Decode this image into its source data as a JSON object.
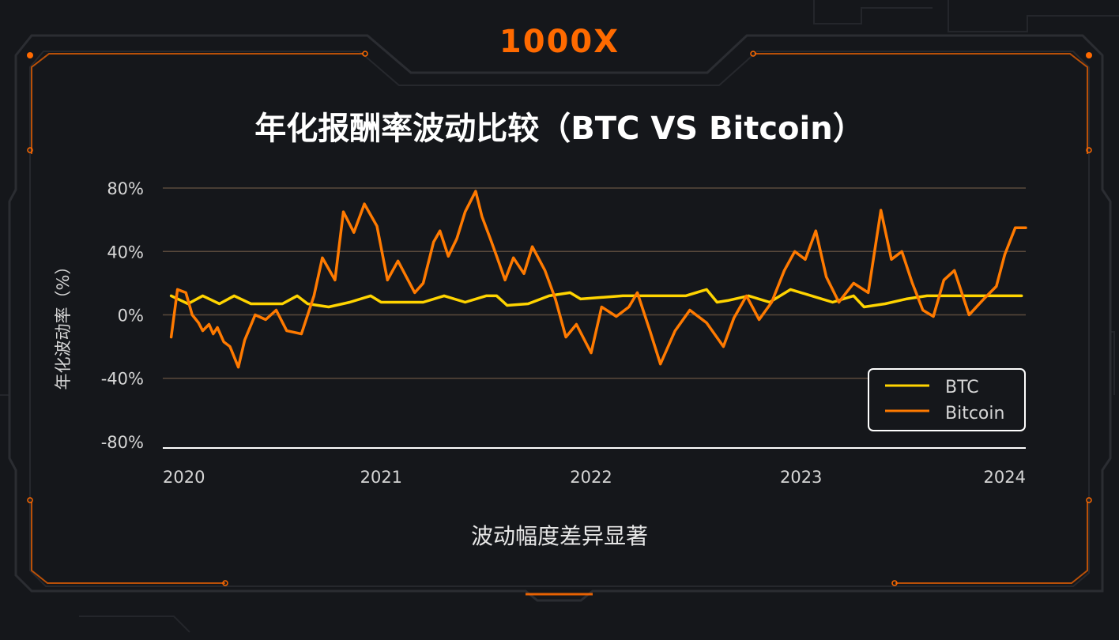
{
  "brand": "1000X",
  "caption": "波动幅度差异显著",
  "colors": {
    "background": "#15171b",
    "frame": "#2a2c31",
    "accent": "#ff6a00",
    "grid": "#5a4a3c",
    "btc": "#ffd400",
    "bitcoin": "#ff7a00"
  },
  "chart_data": {
    "type": "line",
    "title": "年化报酬率波动比较（BTC VS Bitcoin）",
    "xlabel": "",
    "ylabel": "年化波动率（%）",
    "xlim": [
      2019.96,
      2024.07
    ],
    "ylim": [
      -84,
      84
    ],
    "yticks": [
      80,
      40,
      0,
      -40,
      -80
    ],
    "ytick_labels": [
      "80%",
      "40%",
      "0%",
      "-40%",
      "-80%"
    ],
    "xticks": [
      2020,
      2021,
      2022,
      2023,
      2024
    ],
    "xtick_labels": [
      "2020",
      "2021",
      "2022",
      "2023",
      "2024"
    ],
    "grid": true,
    "legend": "bottom-right",
    "series": [
      {
        "name": "BTC",
        "color": "#ffd400",
        "x": [
          2020.0,
          2020.08,
          2020.15,
          2020.23,
          2020.3,
          2020.38,
          2020.45,
          2020.53,
          2020.6,
          2020.65,
          2020.75,
          2020.85,
          2020.95,
          2021.0,
          2021.1,
          2021.2,
          2021.3,
          2021.4,
          2021.5,
          2021.55,
          2021.6,
          2021.7,
          2021.8,
          2021.9,
          2021.95,
          2022.05,
          2022.15,
          2022.25,
          2022.35,
          2022.45,
          2022.55,
          2022.6,
          2022.65,
          2022.75,
          2022.85,
          2022.95,
          2023.05,
          2023.15,
          2023.25,
          2023.3,
          2023.4,
          2023.5,
          2023.6,
          2023.7,
          2023.8,
          2023.9,
          2024.0,
          2024.05
        ],
        "y": [
          12,
          7,
          12,
          7,
          12,
          7,
          7,
          7,
          12,
          7,
          5,
          8,
          12,
          8,
          8,
          8,
          12,
          8,
          12,
          12,
          6,
          7,
          12,
          14,
          10,
          11,
          12,
          12,
          12,
          12,
          16,
          8,
          9,
          12,
          8,
          16,
          12,
          8,
          12,
          5,
          7,
          10,
          12,
          12,
          12,
          12,
          12,
          12
        ]
      },
      {
        "name": "Bitcoin",
        "color": "#ff7a00",
        "x": [
          2020.0,
          2020.03,
          2020.07,
          2020.1,
          2020.13,
          2020.15,
          2020.18,
          2020.2,
          2020.22,
          2020.25,
          2020.28,
          2020.32,
          2020.35,
          2020.4,
          2020.45,
          2020.5,
          2020.55,
          2020.62,
          2020.68,
          2020.72,
          2020.78,
          2020.82,
          2020.87,
          2020.92,
          2020.98,
          2021.03,
          2021.08,
          2021.12,
          2021.16,
          2021.2,
          2021.25,
          2021.28,
          2021.32,
          2021.36,
          2021.4,
          2021.45,
          2021.48,
          2021.52,
          2021.55,
          2021.59,
          2021.63,
          2021.68,
          2021.72,
          2021.78,
          2021.83,
          2021.88,
          2021.93,
          2022.0,
          2022.05,
          2022.12,
          2022.18,
          2022.22,
          2022.28,
          2022.33,
          2022.4,
          2022.47,
          2022.55,
          2022.63,
          2022.68,
          2022.74,
          2022.8,
          2022.86,
          2022.92,
          2022.97,
          2023.02,
          2023.07,
          2023.12,
          2023.18,
          2023.25,
          2023.32,
          2023.38,
          2023.43,
          2023.48,
          2023.53,
          2023.58,
          2023.63,
          2023.68,
          2023.73,
          2023.8,
          2023.87,
          2023.93,
          2023.97,
          2024.02,
          2024.07
        ],
        "y": [
          -14,
          16,
          14,
          0,
          -5,
          -10,
          -6,
          -12,
          -8,
          -17,
          -20,
          -33,
          -16,
          0,
          -3,
          3,
          -10,
          -12,
          12,
          36,
          22,
          65,
          52,
          70,
          56,
          22,
          34,
          24,
          14,
          20,
          46,
          53,
          37,
          48,
          65,
          78,
          62,
          48,
          37,
          22,
          36,
          26,
          43,
          28,
          10,
          -14,
          -6,
          -24,
          5,
          -1,
          5,
          14,
          -10,
          -31,
          -10,
          3,
          -5,
          -20,
          -2,
          12,
          -3,
          8,
          28,
          40,
          35,
          53,
          24,
          8,
          20,
          14,
          66,
          35,
          40,
          20,
          3,
          -1,
          22,
          28,
          0,
          10,
          18,
          38,
          55,
          55
        ]
      }
    ]
  }
}
